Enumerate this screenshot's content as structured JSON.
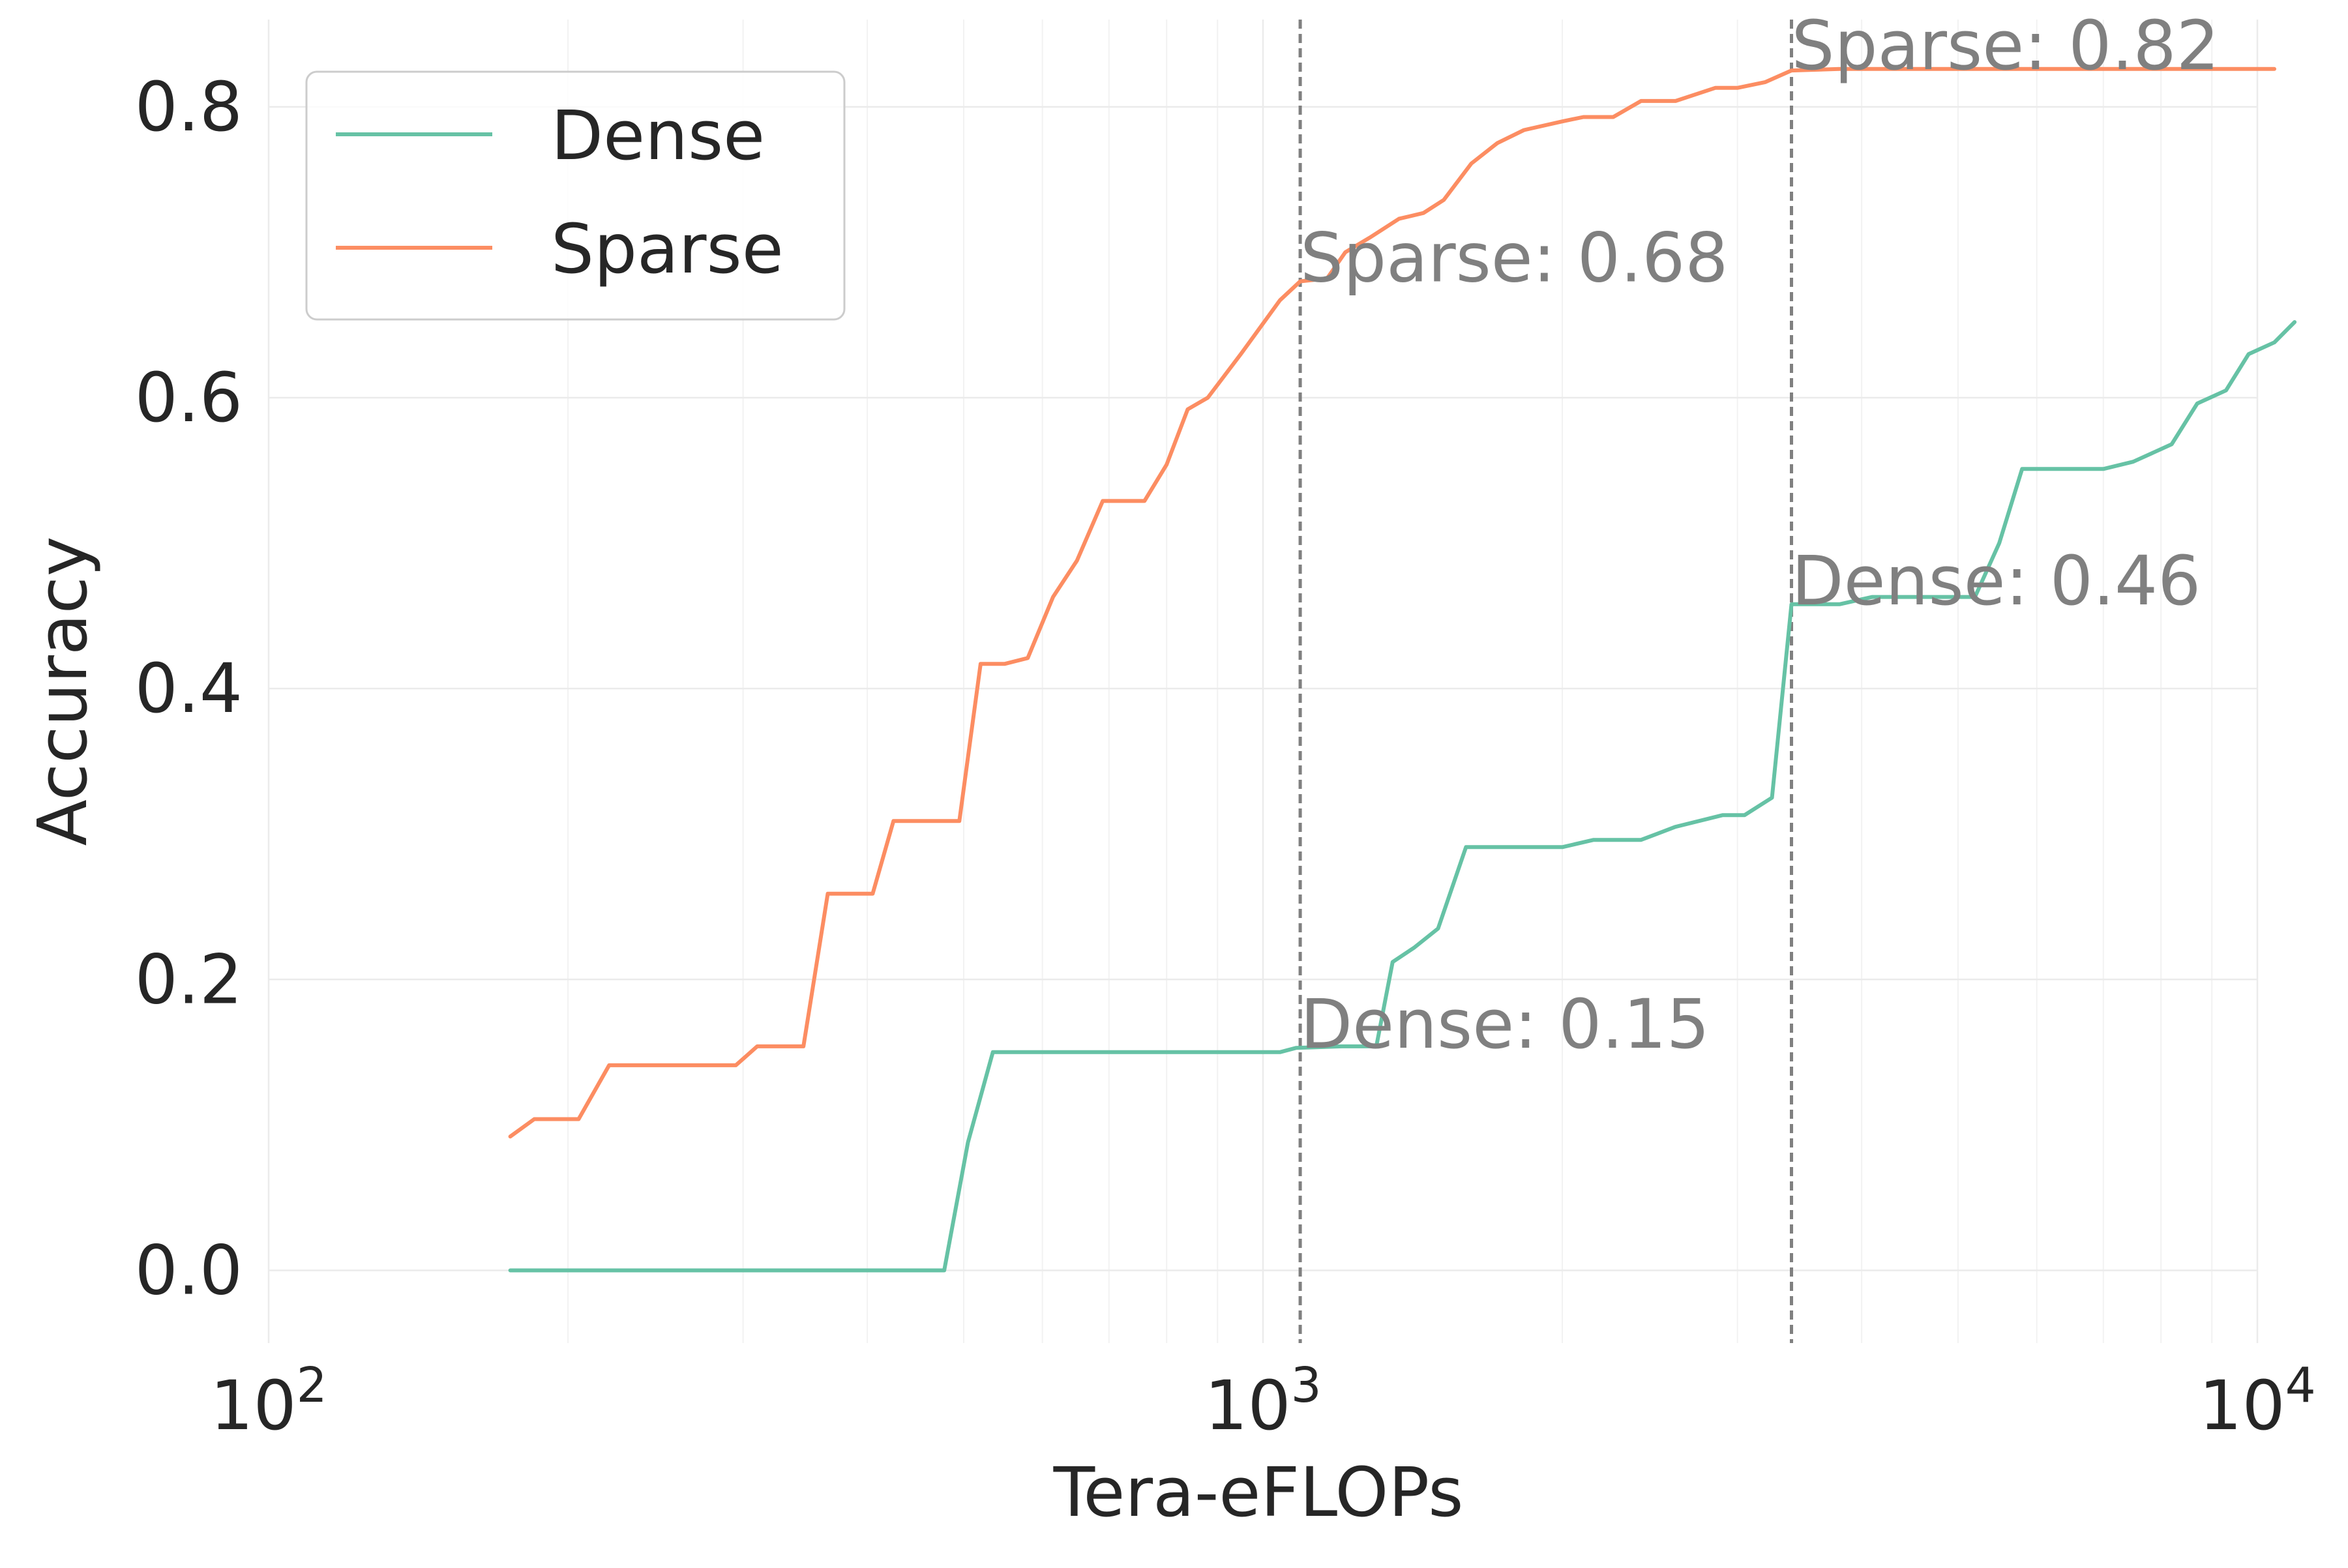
{
  "chart_data": {
    "type": "line",
    "xscale": "log",
    "xlim": [
      100,
      10000
    ],
    "ylim": [
      -0.05,
      0.86
    ],
    "xlabel": "Tera-eFLOPs",
    "ylabel": "Accuracy",
    "grid": true,
    "legend_position": "upper-left",
    "x_ticks": [
      {
        "value": 100,
        "base": "10",
        "exp": "2"
      },
      {
        "value": 1000,
        "base": "10",
        "exp": "3"
      },
      {
        "value": 10000,
        "base": "10",
        "exp": "4"
      }
    ],
    "y_ticks": [
      {
        "value": 0.0,
        "label": "0.0"
      },
      {
        "value": 0.2,
        "label": "0.2"
      },
      {
        "value": 0.4,
        "label": "0.4"
      },
      {
        "value": 0.6,
        "label": "0.6"
      },
      {
        "value": 0.8,
        "label": "0.8"
      }
    ],
    "vlines": [
      1090,
      3400
    ],
    "series": [
      {
        "name": "Dense",
        "color": "#66c2a5",
        "points": [
          [
            175,
            0.0
          ],
          [
            200,
            0.0
          ],
          [
            250,
            0.0
          ],
          [
            300,
            0.0
          ],
          [
            350,
            0.0
          ],
          [
            400,
            0.0
          ],
          [
            450,
            0.0
          ],
          [
            478,
            0.0
          ],
          [
            505,
            0.088
          ],
          [
            535,
            0.15
          ],
          [
            600,
            0.15
          ],
          [
            700,
            0.15
          ],
          [
            800,
            0.15
          ],
          [
            900,
            0.15
          ],
          [
            1040,
            0.15
          ],
          [
            1080,
            0.153
          ],
          [
            1200,
            0.154
          ],
          [
            1300,
            0.154
          ],
          [
            1350,
            0.212
          ],
          [
            1420,
            0.222
          ],
          [
            1500,
            0.235
          ],
          [
            1600,
            0.291
          ],
          [
            1800,
            0.291
          ],
          [
            2000,
            0.291
          ],
          [
            2150,
            0.296
          ],
          [
            2400,
            0.296
          ],
          [
            2600,
            0.305
          ],
          [
            2900,
            0.313
          ],
          [
            3050,
            0.313
          ],
          [
            3250,
            0.325
          ],
          [
            3400,
            0.458
          ],
          [
            3600,
            0.458
          ],
          [
            3800,
            0.458
          ],
          [
            4100,
            0.463
          ],
          [
            4600,
            0.463
          ],
          [
            5200,
            0.463
          ],
          [
            5500,
            0.5
          ],
          [
            5800,
            0.551
          ],
          [
            6400,
            0.551
          ],
          [
            7000,
            0.551
          ],
          [
            7500,
            0.556
          ],
          [
            8200,
            0.568
          ],
          [
            8700,
            0.596
          ],
          [
            9300,
            0.605
          ],
          [
            9800,
            0.63
          ],
          [
            10400,
            0.638
          ],
          [
            10900,
            0.652
          ]
        ]
      },
      {
        "name": "Sparse",
        "color": "#fc8d62",
        "points": [
          [
            175,
            0.092
          ],
          [
            185,
            0.104
          ],
          [
            205,
            0.104
          ],
          [
            220,
            0.141
          ],
          [
            260,
            0.141
          ],
          [
            295,
            0.141
          ],
          [
            310,
            0.154
          ],
          [
            345,
            0.154
          ],
          [
            365,
            0.259
          ],
          [
            405,
            0.259
          ],
          [
            425,
            0.309
          ],
          [
            495,
            0.309
          ],
          [
            520,
            0.417
          ],
          [
            550,
            0.417
          ],
          [
            580,
            0.421
          ],
          [
            615,
            0.463
          ],
          [
            650,
            0.488
          ],
          [
            690,
            0.529
          ],
          [
            760,
            0.529
          ],
          [
            800,
            0.554
          ],
          [
            840,
            0.592
          ],
          [
            880,
            0.6
          ],
          [
            950,
            0.63
          ],
          [
            1040,
            0.667
          ],
          [
            1090,
            0.68
          ],
          [
            1160,
            0.682
          ],
          [
            1210,
            0.7
          ],
          [
            1280,
            0.71
          ],
          [
            1370,
            0.723
          ],
          [
            1450,
            0.727
          ],
          [
            1520,
            0.736
          ],
          [
            1620,
            0.761
          ],
          [
            1720,
            0.775
          ],
          [
            1830,
            0.784
          ],
          [
            2000,
            0.79
          ],
          [
            2100,
            0.793
          ],
          [
            2250,
            0.793
          ],
          [
            2400,
            0.804
          ],
          [
            2600,
            0.804
          ],
          [
            2850,
            0.813
          ],
          [
            3000,
            0.813
          ],
          [
            3200,
            0.817
          ],
          [
            3400,
            0.825
          ],
          [
            3800,
            0.826
          ],
          [
            5000,
            0.826
          ],
          [
            7000,
            0.826
          ],
          [
            9000,
            0.826
          ],
          [
            10400,
            0.826
          ]
        ]
      }
    ],
    "annotations": [
      {
        "text": "Sparse: 0.82",
        "x": 3400,
        "y": 0.826
      },
      {
        "text": "Sparse: 0.68",
        "x": 1090,
        "y": 0.68
      },
      {
        "text": "Dense: 0.46",
        "x": 3400,
        "y": 0.458
      },
      {
        "text": "Dense: 0.15",
        "x": 1090,
        "y": 0.153
      }
    ]
  }
}
